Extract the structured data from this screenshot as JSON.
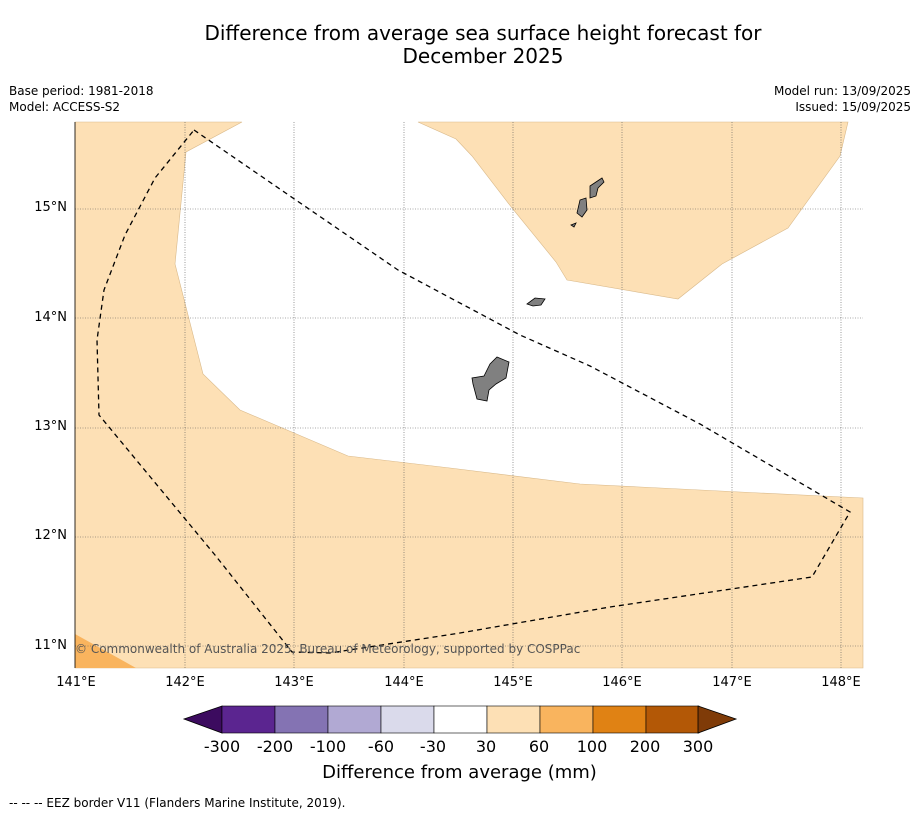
{
  "title_line1": "Difference from average sea surface height forecast for",
  "title_line2": "December 2025",
  "meta_left": [
    "Base period: 1981-2018",
    "Model: ACCESS-S2"
  ],
  "meta_right": [
    "Model run: 13/09/2025",
    "Issued: 15/09/2025"
  ],
  "latitude_labels": [
    "15°N",
    "14°N",
    "13°N",
    "12°N",
    "11°N"
  ],
  "longitude_labels": [
    "141°E",
    "142°E",
    "143°E",
    "144°E",
    "145°E",
    "146°E",
    "147°E",
    "148°E"
  ],
  "copyright": "© Commonwealth of Australia 2025, Bureau of Meteorology, supported by COSPPac",
  "colorbar": {
    "ticks": [
      "-300",
      "-200",
      "-100",
      "-60",
      "-30",
      "30",
      "60",
      "100",
      "200",
      "300"
    ],
    "colors": [
      "#3c0b5f",
      "#5b2590",
      "#8473b3",
      "#b1a9d3",
      "#dadaeb",
      "#ffffff",
      "#fde0b5",
      "#f9b45e",
      "#e08214",
      "#b35806",
      "#7f3b08"
    ],
    "label": "Difference from average (mm)"
  },
  "legend_footnote": "--  --  -- EEZ border V11 (Flanders Marine Institute, 2019)."
}
